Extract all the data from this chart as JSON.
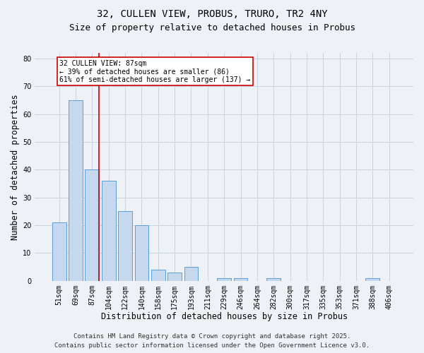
{
  "title1": "32, CULLEN VIEW, PROBUS, TRURO, TR2 4NY",
  "title2": "Size of property relative to detached houses in Probus",
  "xlabel": "Distribution of detached houses by size in Probus",
  "ylabel": "Number of detached properties",
  "categories": [
    "51sqm",
    "69sqm",
    "87sqm",
    "104sqm",
    "122sqm",
    "140sqm",
    "158sqm",
    "175sqm",
    "193sqm",
    "211sqm",
    "229sqm",
    "246sqm",
    "264sqm",
    "282sqm",
    "300sqm",
    "317sqm",
    "335sqm",
    "353sqm",
    "371sqm",
    "388sqm",
    "406sqm"
  ],
  "values": [
    21,
    65,
    40,
    36,
    25,
    20,
    4,
    3,
    5,
    0,
    1,
    1,
    0,
    1,
    0,
    0,
    0,
    0,
    0,
    1,
    0
  ],
  "bar_color": "#c5d8ed",
  "bar_edge_color": "#5a9fd4",
  "highlight_index": 2,
  "highlight_line_color": "#cc0000",
  "annotation_text": "32 CULLEN VIEW: 87sqm\n← 39% of detached houses are smaller (86)\n61% of semi-detached houses are larger (137) →",
  "annotation_box_color": "#ffffff",
  "annotation_box_edge": "#cc0000",
  "ylim": [
    0,
    82
  ],
  "yticks": [
    0,
    10,
    20,
    30,
    40,
    50,
    60,
    70,
    80
  ],
  "footer1": "Contains HM Land Registry data © Crown copyright and database right 2025.",
  "footer2": "Contains public sector information licensed under the Open Government Licence v3.0.",
  "bg_color": "#eef2f7",
  "plot_bg_color": "#eef2f7",
  "grid_color": "#c8d4e0",
  "title_fontsize": 10,
  "subtitle_fontsize": 9,
  "tick_fontsize": 7,
  "label_fontsize": 8.5,
  "footer_fontsize": 6.5,
  "annotation_fontsize": 7
}
